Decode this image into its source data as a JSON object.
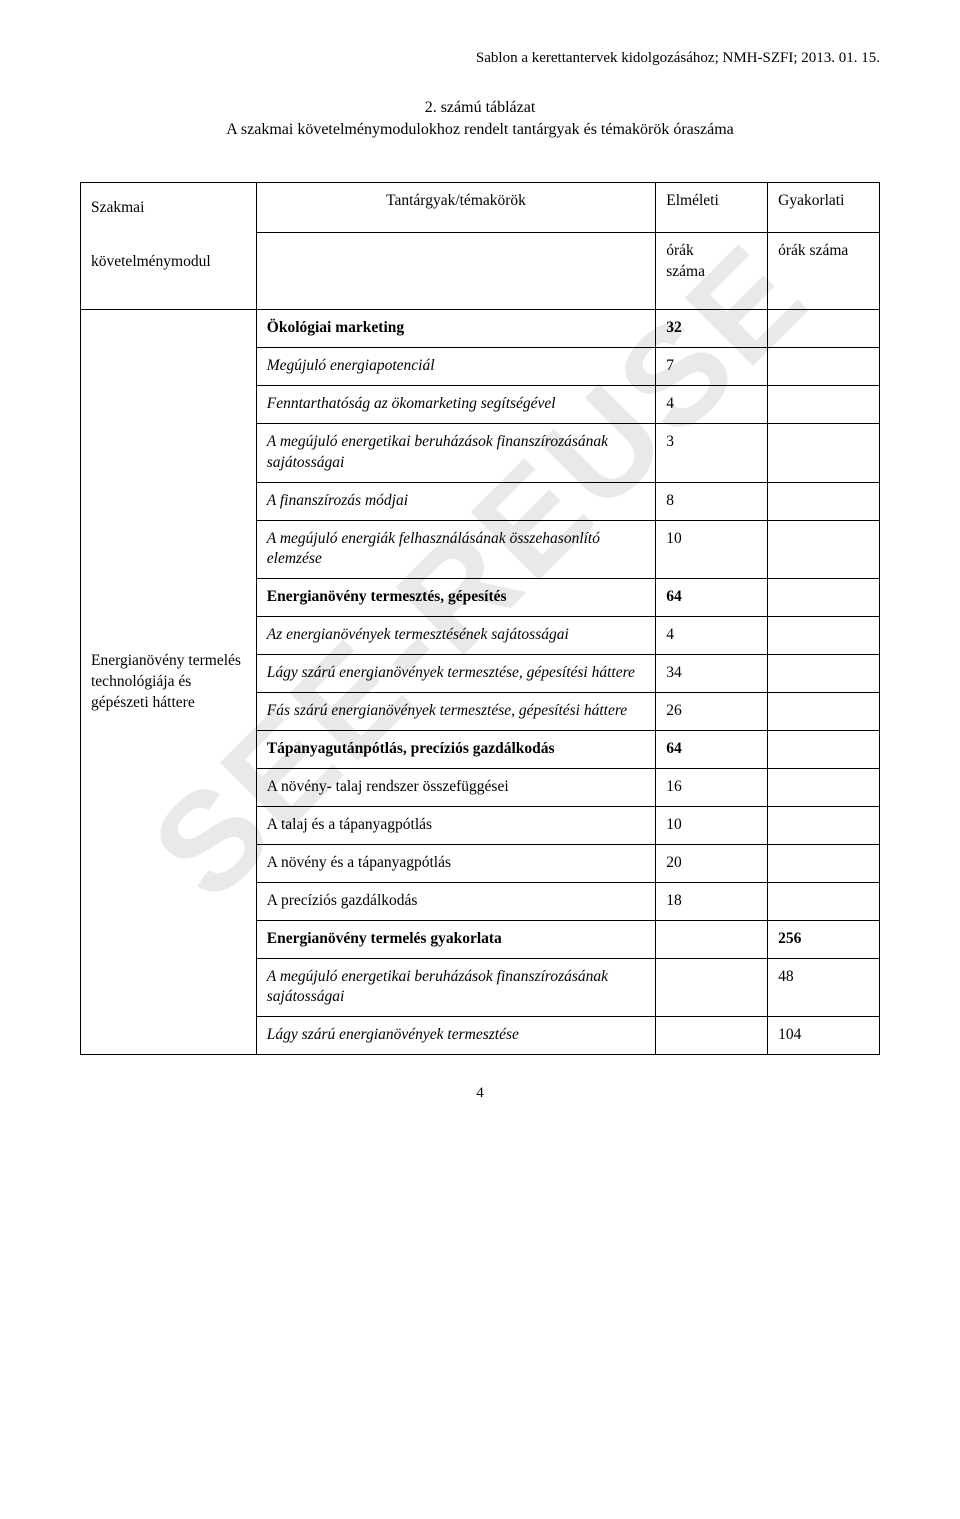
{
  "watermark_text": "SEE-REUSE",
  "doc_header": "Sablon a kerettantervek kidolgozásához; NMH-SZFI; 2013. 01. 15.",
  "title_line1": "2. számú táblázat",
  "title_line2": "A szakmai követelménymodulokhoz rendelt tantárgyak és témakörök óraszáma",
  "headers": {
    "col1": "Szakmai követelménymodul",
    "col2": "Tantárgyak/témakörök",
    "col3a": "Elméleti",
    "col3b": "órák száma",
    "col4a": "Gyakorlati",
    "col4b": "órák száma"
  },
  "left_cell": "Energianövény termelés technológiája és gépészeti háttere",
  "rows": [
    {
      "label": "Ökológiai marketing",
      "bold": true,
      "italic": false,
      "c3": "32",
      "c4": ""
    },
    {
      "label": "Megújuló energiapotenciál",
      "bold": false,
      "italic": true,
      "c3": "7",
      "c4": ""
    },
    {
      "label": "Fenntarthatóság az ökomarketing segítségével",
      "bold": false,
      "italic": true,
      "c3": "4",
      "c4": ""
    },
    {
      "label": "A megújuló energetikai beruházások finanszírozásának sajátosságai",
      "bold": false,
      "italic": true,
      "c3": "3",
      "c4": ""
    },
    {
      "label": "A finanszírozás módjai",
      "bold": false,
      "italic": true,
      "c3": "8",
      "c4": ""
    },
    {
      "label": "A megújuló energiák felhasználásának összehasonlító elemzése",
      "bold": false,
      "italic": true,
      "c3": "10",
      "c4": ""
    },
    {
      "label": "Energianövény termesztés, gépesítés",
      "bold": true,
      "italic": false,
      "c3": "64",
      "c4": ""
    },
    {
      "label": "Az energianövények termesztésének sajátosságai",
      "bold": false,
      "italic": true,
      "c3": "4",
      "c4": ""
    },
    {
      "label": "Lágy szárú energianövények termesztése, gépesítési háttere",
      "bold": false,
      "italic": true,
      "c3": "34",
      "c4": ""
    },
    {
      "label": "Fás szárú energianövények termesztése, gépesítési háttere",
      "bold": false,
      "italic": true,
      "c3": "26",
      "c4": ""
    },
    {
      "label": "Tápanyagutánpótlás, precíziós gazdálkodás",
      "bold": true,
      "italic": false,
      "c3": "64",
      "c4": ""
    },
    {
      "label": "A növény- talaj rendszer összefüggései",
      "bold": false,
      "italic": false,
      "c3": "16",
      "c4": ""
    },
    {
      "label": "A talaj és a tápanyagpótlás",
      "bold": false,
      "italic": false,
      "c3": "10",
      "c4": ""
    },
    {
      "label": "A növény és a tápanyagpótlás",
      "bold": false,
      "italic": false,
      "c3": "20",
      "c4": ""
    },
    {
      "label": "A precíziós gazdálkodás",
      "bold": false,
      "italic": false,
      "c3": "18",
      "c4": ""
    },
    {
      "label": "Energianövény termelés gyakorlata",
      "bold": true,
      "italic": false,
      "c3": "",
      "c4": "256"
    },
    {
      "label": "A megújuló energetikai beruházások finanszírozásának sajátosságai",
      "bold": false,
      "italic": true,
      "c3": "",
      "c4": "48"
    },
    {
      "label": "Lágy szárú energianövények termesztése",
      "bold": false,
      "italic": true,
      "c3": "",
      "c4": "104"
    }
  ],
  "page_number": "4"
}
